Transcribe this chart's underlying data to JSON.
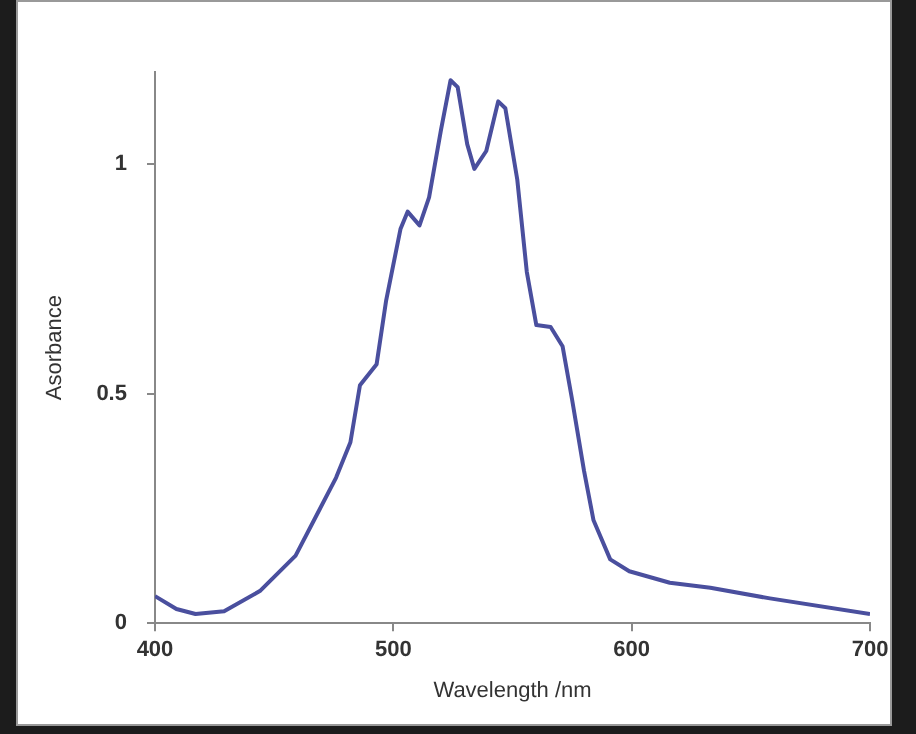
{
  "chart_data": {
    "type": "line",
    "xlabel": "Wavelength /nm",
    "ylabel": "Asorbance",
    "color": "#4a4f9e",
    "grid": false,
    "legend": false,
    "marker": "none",
    "line_style": "solid",
    "xlim": [
      400,
      700
    ],
    "xticks": [
      400,
      500,
      600,
      700
    ],
    "ylim": [
      0,
      1.2
    ],
    "yticks": [
      0,
      0.5,
      1
    ],
    "x": [
      400,
      409,
      417,
      429,
      444,
      459,
      469,
      476,
      482,
      486,
      493,
      497,
      503,
      506,
      511,
      515,
      520,
      524,
      527,
      531,
      534,
      539,
      544,
      547,
      552,
      556,
      560,
      566,
      571,
      575,
      580,
      584,
      591,
      599,
      616,
      633,
      658,
      700
    ],
    "values": [
      0.059,
      0.031,
      0.02,
      0.026,
      0.07,
      0.147,
      0.247,
      0.317,
      0.394,
      0.518,
      0.564,
      0.703,
      0.858,
      0.896,
      0.866,
      0.927,
      1.074,
      1.182,
      1.167,
      1.043,
      0.989,
      1.028,
      1.136,
      1.121,
      0.966,
      0.765,
      0.649,
      0.645,
      0.603,
      0.487,
      0.332,
      0.224,
      0.139,
      0.113,
      0.088,
      0.077,
      0.054,
      0.02
    ]
  }
}
